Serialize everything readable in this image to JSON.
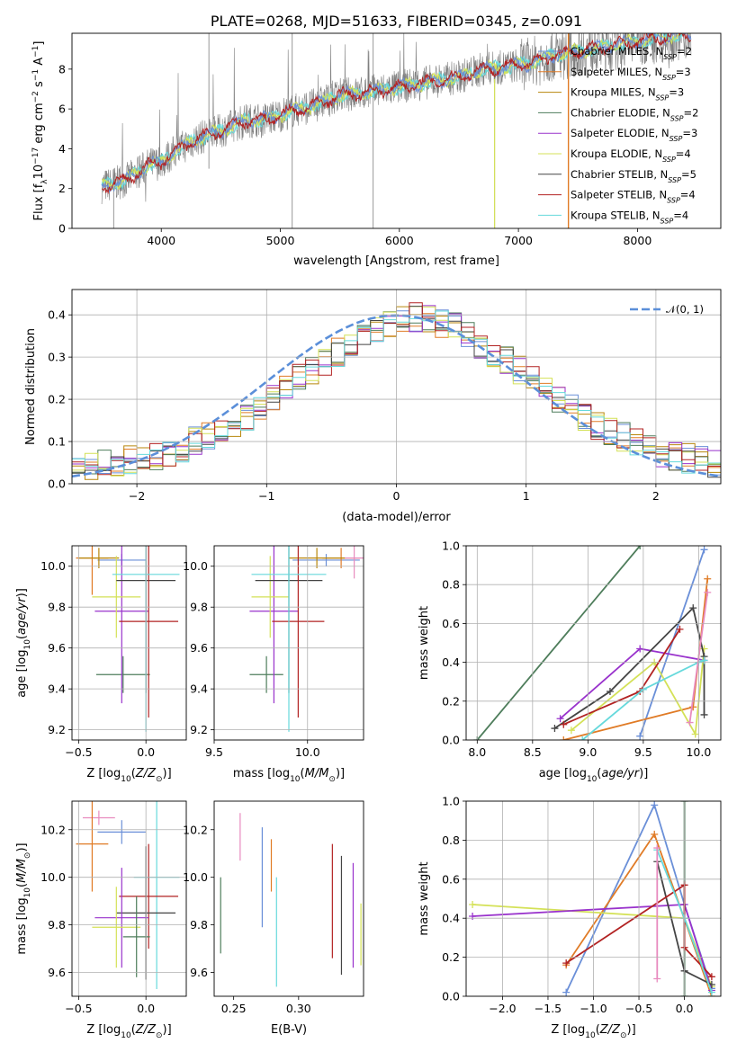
{
  "figure_title": "PLATE=0268, MJD=51633, FIBERID=0345, z=0.091",
  "colors": {
    "Chabrier MILES": "#6a8fd8",
    "Salpeter MILES": "#e07b26",
    "Kroupa MILES": "#b8860b",
    "Chabrier ELODIE": "#4e7d5b",
    "Salpeter ELODIE": "#9932cc",
    "Kroupa ELODIE": "#d4e157",
    "Chabrier STELIB": "#444444",
    "Salpeter STELIB": "#b22222",
    "Kroupa STELIB": "#66d9dc",
    "extra_pink": "#e88bbf",
    "data": "#7f7f7f",
    "normal": "#5b8fd9"
  },
  "chart_data": [
    {
      "id": "spectrum",
      "type": "line",
      "title": "PLATE=0268, MJD=51633, FIBERID=0345, z=0.091",
      "xlabel": "wavelength [Angstrom, rest frame]",
      "ylabel": "Flux [f_λ10^-17 erg cm^-2 s^-1 A^-1]",
      "xlim": [
        3250,
        8700
      ],
      "ylim": [
        0,
        9.8
      ],
      "xticks": [
        4000,
        5000,
        6000,
        7000,
        8000
      ],
      "yticks": [
        0,
        2,
        4,
        6,
        8
      ],
      "legend_position": "right",
      "series": [
        {
          "name": "Chabrier MILES, N_SSP=2",
          "label_main": "Chabrier MILES, N",
          "label_sub": "SSP",
          "label_tail": "=2"
        },
        {
          "name": "Salpeter MILES, N_SSP=3",
          "label_main": "Salpeter MILES, N",
          "label_sub": "SSP",
          "label_tail": "=3"
        },
        {
          "name": "Kroupa MILES, N_SSP=3",
          "label_main": "Kroupa MILES, N",
          "label_sub": "SSP",
          "label_tail": "=3"
        },
        {
          "name": "Chabrier ELODIE, N_SSP=2",
          "label_main": "Chabrier ELODIE, N",
          "label_sub": "SSP",
          "label_tail": "=2"
        },
        {
          "name": "Salpeter ELODIE, N_SSP=3",
          "label_main": "Salpeter ELODIE, N",
          "label_sub": "SSP",
          "label_tail": "=3"
        },
        {
          "name": "Kroupa ELODIE, N_SSP=4",
          "label_main": "Kroupa ELODIE, N",
          "label_sub": "SSP",
          "label_tail": "=4"
        },
        {
          "name": "Chabrier STELIB, N_SSP=5",
          "label_main": "Chabrier STELIB, N",
          "label_sub": "SSP",
          "label_tail": "=5"
        },
        {
          "name": "Salpeter STELIB, N_SSP=4",
          "label_main": "Salpeter STELIB, N",
          "label_sub": "SSP",
          "label_tail": "=4"
        },
        {
          "name": "Kroupa STELIB, N_SSP=4",
          "label_main": "Kroupa STELIB, N",
          "label_sub": "SSP",
          "label_tail": "=4"
        }
      ],
      "continuum_x": [
        3500,
        3700,
        3900,
        4000,
        4100,
        4300,
        4500,
        4700,
        4900,
        5100,
        5300,
        5500,
        5700,
        5900,
        6100,
        6300,
        6500,
        6700,
        6900,
        7100,
        7300,
        7500,
        7700,
        7900,
        8100,
        8300,
        8450
      ],
      "continuum_y": [
        2.1,
        2.4,
        3.2,
        3.3,
        3.8,
        4.5,
        4.9,
        5.4,
        5.5,
        5.9,
        6.2,
        6.7,
        6.8,
        7.0,
        7.2,
        7.4,
        7.6,
        8.0,
        8.1,
        8.3,
        8.7,
        8.9,
        9.1,
        9.3,
        9.5,
        9.7,
        9.8
      ]
    },
    {
      "id": "residual_histogram",
      "type": "bar",
      "xlabel": "(data-model)/error",
      "ylabel": "Normed distribution",
      "xlim": [
        -2.5,
        2.5
      ],
      "ylim": [
        0,
        0.46
      ],
      "xticks": [
        -2,
        -1,
        0,
        1,
        2
      ],
      "yticks": [
        0.0,
        0.1,
        0.2,
        0.3,
        0.4
      ],
      "legend": "𝒩(0, 1)",
      "legend_position": "top-right",
      "bin_start": -2.5,
      "bin_width": 0.1,
      "envelope": [
        0.03,
        0.04,
        0.045,
        0.05,
        0.055,
        0.06,
        0.065,
        0.075,
        0.085,
        0.1,
        0.11,
        0.125,
        0.14,
        0.16,
        0.18,
        0.2,
        0.22,
        0.25,
        0.27,
        0.29,
        0.31,
        0.33,
        0.35,
        0.37,
        0.38,
        0.39,
        0.395,
        0.39,
        0.38,
        0.37,
        0.35,
        0.33,
        0.31,
        0.29,
        0.27,
        0.25,
        0.22,
        0.2,
        0.18,
        0.16,
        0.14,
        0.125,
        0.11,
        0.1,
        0.085,
        0.075,
        0.065,
        0.06,
        0.055,
        0.05
      ]
    },
    {
      "id": "age_vs_Z",
      "type": "scatter",
      "xlabel": "Z [log10(Z/Z⊙)]",
      "ylabel": "age [log10(age/yr)]",
      "xlim": [
        -0.55,
        0.3
      ],
      "ylim": [
        9.15,
        10.1
      ],
      "xticks": [
        -0.5,
        0.0
      ],
      "yticks": [
        9.2,
        9.4,
        9.6,
        9.8,
        10.0
      ],
      "points": [
        {
          "c": "Chabrier MILES",
          "x": -0.18,
          "xe": 0.18,
          "y": 10.03,
          "ye": 0.03
        },
        {
          "c": "Salpeter MILES",
          "x": -0.4,
          "xe": 0.12,
          "y": 10.04,
          "ye": 0.18
        },
        {
          "c": "Kroupa MILES",
          "x": -0.35,
          "xe": 0.15,
          "y": 10.04,
          "ye": 0.05
        },
        {
          "c": "Chabrier ELODIE",
          "x": -0.17,
          "xe": 0.2,
          "y": 9.47,
          "ye": 0.09
        },
        {
          "c": "Salpeter ELODIE",
          "x": -0.18,
          "xe": 0.2,
          "y": 9.78,
          "ye": 0.45
        },
        {
          "c": "Kroupa ELODIE",
          "x": -0.22,
          "xe": 0.18,
          "y": 9.85,
          "ye": 0.2
        },
        {
          "c": "Chabrier STELIB",
          "x": 0.0,
          "xe": 0.22,
          "y": 9.93,
          "ye": 0.55
        },
        {
          "c": "Salpeter STELIB",
          "x": 0.02,
          "xe": 0.22,
          "y": 9.73,
          "ye": 0.47
        },
        {
          "c": "Kroupa STELIB",
          "x": 0.0,
          "xe": 0.25,
          "y": 9.96,
          "ye": 0.77
        }
      ]
    },
    {
      "id": "age_vs_mass",
      "type": "scatter",
      "xlabel": "mass [log10(M/M⊙)]",
      "ylabel": "",
      "xlim": [
        9.5,
        10.3
      ],
      "ylim": [
        9.15,
        10.1
      ],
      "xticks": [
        9.5,
        10.0
      ],
      "yticks": [
        9.2,
        9.4,
        9.6,
        9.8,
        10.0
      ],
      "points": [
        {
          "c": "Chabrier MILES",
          "x": 10.1,
          "xe": 0.18,
          "y": 10.03,
          "ye": 0.03
        },
        {
          "c": "Salpeter MILES",
          "x": 10.18,
          "xe": 0.1,
          "y": 10.04,
          "ye": 0.05
        },
        {
          "c": "Kroupa MILES",
          "x": 10.05,
          "xe": 0.15,
          "y": 10.04,
          "ye": 0.05
        },
        {
          "c": "Chabrier ELODIE",
          "x": 9.78,
          "xe": 0.09,
          "y": 9.47,
          "ye": 0.09
        },
        {
          "c": "Salpeter ELODIE",
          "x": 9.82,
          "xe": 0.13,
          "y": 9.78,
          "ye": 0.45
        },
        {
          "c": "Kroupa ELODIE",
          "x": 9.8,
          "xe": 0.1,
          "y": 9.85,
          "ye": 0.2
        },
        {
          "c": "Chabrier STELIB",
          "x": 9.9,
          "xe": 0.18,
          "y": 9.93,
          "ye": 0.55
        },
        {
          "c": "Salpeter STELIB",
          "x": 9.95,
          "xe": 0.14,
          "y": 9.73,
          "ye": 0.47
        },
        {
          "c": "Kroupa STELIB",
          "x": 9.9,
          "xe": 0.2,
          "y": 9.96,
          "ye": 0.77
        },
        {
          "c": "extra_pink",
          "x": 10.25,
          "xe": 0.05,
          "y": 10.04,
          "ye": 0.1
        }
      ]
    },
    {
      "id": "massweight_vs_age",
      "type": "line",
      "xlabel": "age [log10(age/yr)]",
      "ylabel": "mass weight",
      "xlim": [
        7.9,
        10.2
      ],
      "ylim": [
        0,
        1.0
      ],
      "xticks": [
        8.0,
        8.5,
        9.0,
        9.5,
        10.0
      ],
      "yticks": [
        0.0,
        0.2,
        0.4,
        0.6,
        0.8,
        1.0
      ],
      "series": [
        {
          "c": "Chabrier ELODIE",
          "x": [
            8.0,
            9.47
          ],
          "y": [
            0.0,
            1.0
          ]
        },
        {
          "c": "Chabrier MILES",
          "x": [
            9.47,
            10.05
          ],
          "y": [
            0.02,
            0.98
          ]
        },
        {
          "c": "Salpeter MILES",
          "x": [
            8.78,
            9.95,
            10.08
          ],
          "y": [
            0.0,
            0.17,
            0.83
          ]
        },
        {
          "c": "Salpeter ELODIE",
          "x": [
            8.75,
            9.47,
            10.05
          ],
          "y": [
            0.11,
            0.47,
            0.41
          ]
        },
        {
          "c": "Kroupa ELODIE",
          "x": [
            8.85,
            9.6,
            9.97,
            10.05
          ],
          "y": [
            0.05,
            0.4,
            0.03,
            0.47
          ]
        },
        {
          "c": "Chabrier STELIB",
          "x": [
            8.7,
            9.2,
            9.95,
            10.05,
            10.05
          ],
          "y": [
            0.06,
            0.25,
            0.68,
            0.43,
            0.13
          ]
        },
        {
          "c": "Salpeter STELIB",
          "x": [
            8.78,
            9.47,
            9.83
          ],
          "y": [
            0.08,
            0.25,
            0.57
          ]
        },
        {
          "c": "Kroupa STELIB",
          "x": [
            8.95,
            9.5,
            10.0,
            10.05
          ],
          "y": [
            0.0,
            0.26,
            0.4,
            0.41
          ]
        },
        {
          "c": "extra_pink",
          "x": [
            9.92,
            10.08
          ],
          "y": [
            0.09,
            0.76
          ]
        }
      ]
    },
    {
      "id": "mass_vs_Z",
      "type": "scatter",
      "xlabel": "Z [log10(Z/Z⊙)]",
      "ylabel": "mass [log10(M/M⊙)]",
      "xlim": [
        -0.55,
        0.3
      ],
      "ylim": [
        9.5,
        10.32
      ],
      "xticks": [
        -0.5,
        0.0
      ],
      "yticks": [
        9.6,
        9.8,
        10.0,
        10.2
      ],
      "points": [
        {
          "c": "extra_pink",
          "x": -0.35,
          "xe": 0.12,
          "y": 10.25,
          "ye": 0.03
        },
        {
          "c": "Chabrier MILES",
          "x": -0.18,
          "xe": 0.18,
          "y": 10.19,
          "ye": 0.05
        },
        {
          "c": "Salpeter MILES",
          "x": -0.4,
          "xe": 0.12,
          "y": 10.14,
          "ye": 0.2
        },
        {
          "c": "Kroupa STELIB",
          "x": 0.08,
          "xe": 0.17,
          "y": 10.0,
          "ye": 0.47
        },
        {
          "c": "Salpeter STELIB",
          "x": 0.02,
          "xe": 0.22,
          "y": 9.92,
          "ye": 0.22
        },
        {
          "c": "Chabrier STELIB",
          "x": 0.0,
          "xe": 0.22,
          "y": 9.85,
          "ye": 0.28
        },
        {
          "c": "Salpeter ELODIE",
          "x": -0.18,
          "xe": 0.2,
          "y": 9.83,
          "ye": 0.21
        },
        {
          "c": "Kroupa ELODIE",
          "x": -0.22,
          "xe": 0.18,
          "y": 9.79,
          "ye": 0.17
        },
        {
          "c": "Chabrier ELODIE",
          "x": -0.07,
          "xe": 0.1,
          "y": 9.75,
          "ye": 0.17
        }
      ]
    },
    {
      "id": "mass_vs_ebv",
      "type": "scatter",
      "xlabel": "E(B-V)",
      "ylabel": "",
      "xlim": [
        0.235,
        0.35
      ],
      "ylim": [
        9.5,
        10.32
      ],
      "xticks": [
        0.25,
        0.3
      ],
      "yticks": [
        9.6,
        9.8,
        10.0,
        10.2
      ],
      "points": [
        {
          "c": "Chabrier ELODIE",
          "x": 0.24,
          "y": 9.84,
          "ye": 0.16
        },
        {
          "c": "extra_pink",
          "x": 0.255,
          "y": 10.17,
          "ye": 0.1
        },
        {
          "c": "Chabrier MILES",
          "x": 0.272,
          "y": 10.0,
          "ye": 0.21
        },
        {
          "c": "Salpeter MILES",
          "x": 0.279,
          "y": 10.05,
          "ye": 0.11
        },
        {
          "c": "Kroupa STELIB",
          "x": 0.283,
          "y": 9.77,
          "ye": 0.23
        },
        {
          "c": "Salpeter STELIB",
          "x": 0.326,
          "y": 9.9,
          "ye": 0.24
        },
        {
          "c": "Chabrier STELIB",
          "x": 0.333,
          "y": 9.84,
          "ye": 0.25
        },
        {
          "c": "Salpeter ELODIE",
          "x": 0.342,
          "y": 9.84,
          "ye": 0.22
        },
        {
          "c": "Kroupa ELODIE",
          "x": 0.348,
          "y": 9.76,
          "ye": 0.13
        }
      ]
    },
    {
      "id": "massweight_vs_Z",
      "type": "line",
      "xlabel": "Z [log10(Z/Z⊙)]",
      "ylabel": "mass weight",
      "xlim": [
        -2.4,
        0.4
      ],
      "ylim": [
        0,
        1.0
      ],
      "xticks": [
        -2.0,
        -1.5,
        -1.0,
        -0.5,
        0.0
      ],
      "yticks": [
        0.0,
        0.2,
        0.4,
        0.6,
        0.8,
        1.0
      ],
      "series": [
        {
          "c": "Chabrier MILES",
          "x": [
            -1.3,
            -0.33,
            0.0,
            0.3
          ],
          "y": [
            0.02,
            0.98,
            0.47,
            0.04
          ]
        },
        {
          "c": "Salpeter MILES",
          "x": [
            -1.3,
            -0.33,
            0.3
          ],
          "y": [
            0.16,
            0.83,
            0.0
          ]
        },
        {
          "c": "Kroupa ELODIE",
          "x": [
            -2.33,
            0.0,
            0.3
          ],
          "y": [
            0.47,
            0.4,
            0.05
          ]
        },
        {
          "c": "Salpeter ELODIE",
          "x": [
            -2.33,
            0.0,
            0.3
          ],
          "y": [
            0.41,
            0.47,
            0.03
          ]
        },
        {
          "c": "Chabrier ELODIE",
          "x": [
            0.0,
            0.0
          ],
          "y": [
            0.0,
            1.0
          ]
        },
        {
          "c": "Chabrier STELIB",
          "x": [
            -0.3,
            0.0,
            0.3
          ],
          "y": [
            0.69,
            0.13,
            0.06
          ]
        },
        {
          "c": "Salpeter STELIB",
          "x": [
            -1.3,
            0.0,
            0.0,
            0.3
          ],
          "y": [
            0.17,
            0.57,
            0.25,
            0.1
          ]
        },
        {
          "c": "Kroupa STELIB",
          "x": [
            -0.3,
            0.0,
            0.3
          ],
          "y": [
            0.75,
            0.4,
            0.02
          ]
        },
        {
          "c": "extra_pink",
          "x": [
            -0.3,
            -0.3
          ],
          "y": [
            0.76,
            0.09
          ]
        }
      ]
    }
  ]
}
